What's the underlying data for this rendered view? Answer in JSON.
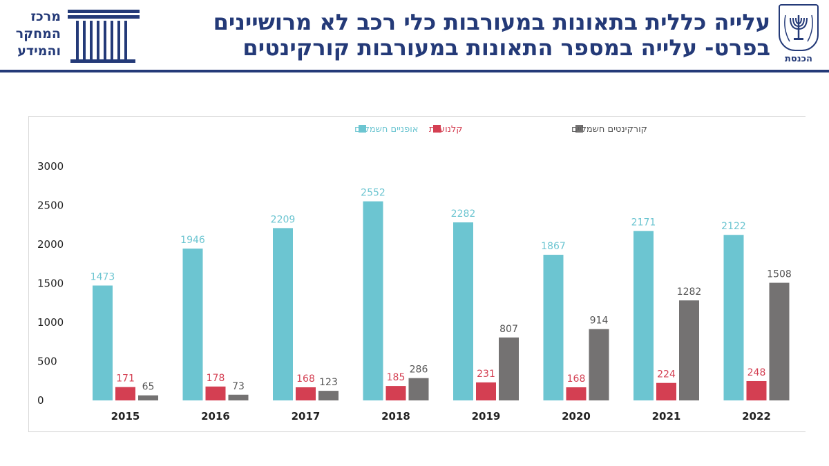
{
  "header": {
    "title_line1": "עלייה כללית בתאונות במעורבות כלי רכב לא מרושיינים",
    "title_line2": "בפרט- עלייה במספר התאונות במעורבות קורקינטים",
    "knesset_label": "הכנסת",
    "center_logo_lines": [
      "מרכז",
      "המחקר",
      "והמידע"
    ]
  },
  "colors": {
    "brand": "#243a78",
    "bikes": "#6cc5d1",
    "scooters": "#d43f52",
    "kick_scooters": "#747272"
  },
  "chart_data": {
    "type": "bar",
    "categories": [
      "2015",
      "2016",
      "2017",
      "2018",
      "2019",
      "2020",
      "2021",
      "2022"
    ],
    "series": [
      {
        "name": "אופניים חשמליים",
        "color": "#6cc5d1",
        "values": [
          1473,
          1946,
          2209,
          2552,
          2282,
          1867,
          2171,
          2122
        ]
      },
      {
        "name": "קלנועיות",
        "color": "#d43f52",
        "values": [
          171,
          178,
          168,
          185,
          231,
          168,
          224,
          248
        ]
      },
      {
        "name": "קורקינטים חשמליים",
        "color": "#747272",
        "values": [
          65,
          73,
          123,
          286,
          807,
          914,
          1282,
          1508
        ]
      }
    ],
    "yticks": [
      0,
      500,
      1000,
      1500,
      2000,
      2500,
      3000
    ],
    "ylim": [
      0,
      3000
    ],
    "legend_position": "top",
    "grid": false
  }
}
